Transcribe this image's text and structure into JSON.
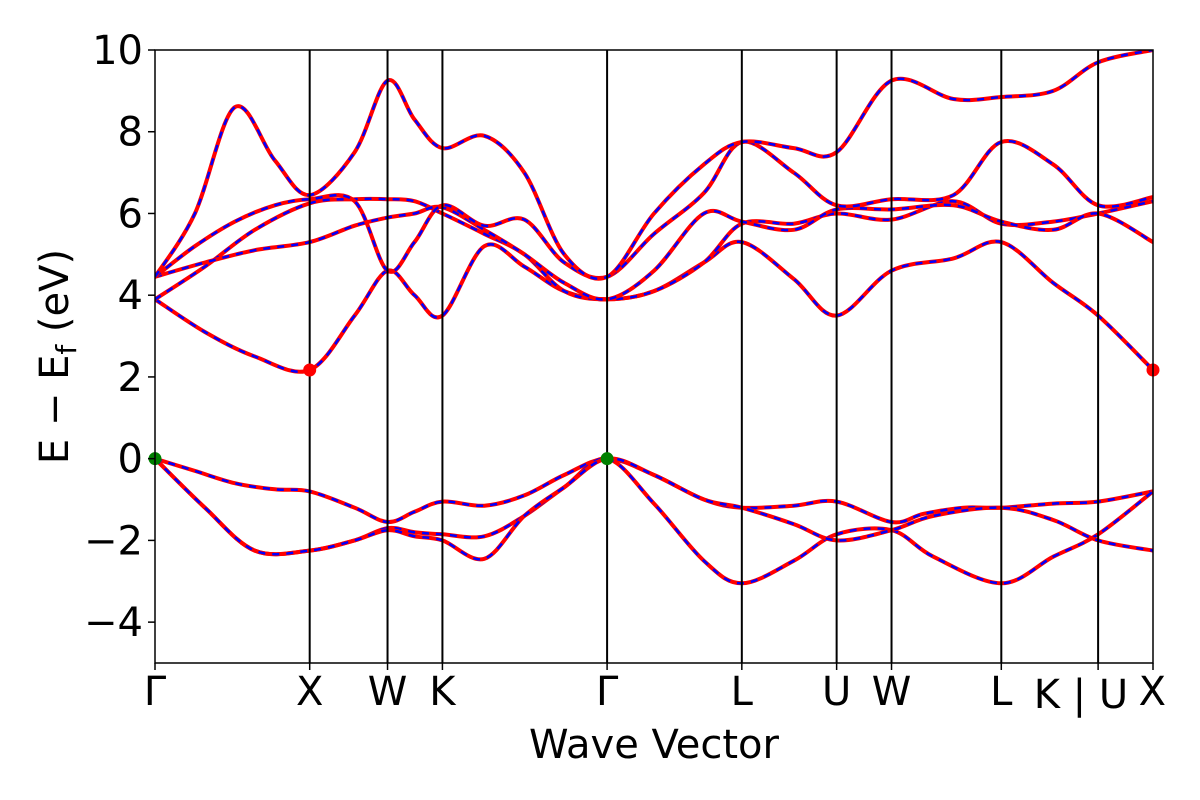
{
  "chart_data": {
    "type": "line",
    "title": "",
    "xlabel": "Wave Vector",
    "ylabel_main": "E − E",
    "ylabel_sub": "f",
    "ylabel_unit": " (eV)",
    "xlim": [
      0,
      1
    ],
    "ylim": [
      -5,
      10
    ],
    "yticks": [
      -4,
      -2,
      0,
      2,
      4,
      6,
      8,
      10
    ],
    "ytick_labels": [
      "−4",
      "−2",
      "0",
      "2",
      "4",
      "6",
      "8",
      "10"
    ],
    "kpoints": [
      {
        "label": "Γ",
        "x": 0.0
      },
      {
        "label": "X",
        "x": 0.155
      },
      {
        "label": "W",
        "x": 0.233
      },
      {
        "label": "K",
        "x": 0.288
      },
      {
        "label": "Γ",
        "x": 0.453
      },
      {
        "label": "L",
        "x": 0.588
      },
      {
        "label": "U",
        "x": 0.683
      },
      {
        "label": "W",
        "x": 0.738
      },
      {
        "label": "L",
        "x": 0.848
      },
      {
        "label": "K | U",
        "x": 0.945
      },
      {
        "label": "X",
        "x": 1.0
      }
    ],
    "line_colors": {
      "solid": "#ff0000",
      "dashed": "#0000ff"
    },
    "markers": [
      {
        "name": "vbm-marker-1",
        "x": 0.0,
        "y": 0.0,
        "color": "#008000"
      },
      {
        "name": "vbm-marker-2",
        "x": 0.453,
        "y": 0.0,
        "color": "#008000"
      },
      {
        "name": "cbm-marker-1",
        "x": 0.155,
        "y": 2.17,
        "color": "#ff0000"
      },
      {
        "name": "cbm-marker-2",
        "x": 1.0,
        "y": 2.17,
        "color": "#ff0000"
      }
    ],
    "bands": [
      {
        "name": "valence-band-1",
        "points": [
          [
            0,
            0
          ],
          [
            0.04,
            -0.3
          ],
          [
            0.08,
            -0.6
          ],
          [
            0.12,
            -0.75
          ],
          [
            0.155,
            -0.8
          ],
          [
            0.2,
            -1.2
          ],
          [
            0.233,
            -1.55
          ],
          [
            0.26,
            -1.3
          ],
          [
            0.288,
            -1.05
          ],
          [
            0.33,
            -1.15
          ],
          [
            0.37,
            -0.9
          ],
          [
            0.41,
            -0.4
          ],
          [
            0.453,
            0
          ],
          [
            0.5,
            -0.4
          ],
          [
            0.55,
            -1.0
          ],
          [
            0.588,
            -1.2
          ],
          [
            0.64,
            -1.15
          ],
          [
            0.683,
            -1.05
          ],
          [
            0.738,
            -1.55
          ],
          [
            0.77,
            -1.35
          ],
          [
            0.81,
            -1.2
          ],
          [
            0.848,
            -1.2
          ],
          [
            0.9,
            -1.1
          ],
          [
            0.945,
            -1.05
          ],
          [
            1.0,
            -0.8
          ]
        ]
      },
      {
        "name": "valence-band-2",
        "points": [
          [
            0,
            0
          ],
          [
            0.05,
            -1.2
          ],
          [
            0.1,
            -2.25
          ],
          [
            0.155,
            -2.25
          ],
          [
            0.2,
            -2.0
          ],
          [
            0.233,
            -1.7
          ],
          [
            0.26,
            -1.8
          ],
          [
            0.288,
            -1.85
          ],
          [
            0.33,
            -1.9
          ],
          [
            0.37,
            -1.4
          ],
          [
            0.41,
            -0.7
          ],
          [
            0.453,
            0
          ],
          [
            0.5,
            -1.1
          ],
          [
            0.55,
            -2.5
          ],
          [
            0.588,
            -3.05
          ],
          [
            0.64,
            -2.5
          ],
          [
            0.683,
            -1.85
          ],
          [
            0.738,
            -1.75
          ],
          [
            0.78,
            -2.4
          ],
          [
            0.848,
            -3.05
          ],
          [
            0.9,
            -2.4
          ],
          [
            0.945,
            -1.85
          ],
          [
            1.0,
            -0.8
          ]
        ]
      },
      {
        "name": "valence-band-3",
        "points": [
          [
            0,
            0
          ],
          [
            0.05,
            -1.2
          ],
          [
            0.1,
            -2.25
          ],
          [
            0.155,
            -2.25
          ],
          [
            0.2,
            -2.0
          ],
          [
            0.233,
            -1.75
          ],
          [
            0.26,
            -1.9
          ],
          [
            0.288,
            -2.0
          ],
          [
            0.33,
            -2.45
          ],
          [
            0.37,
            -1.4
          ],
          [
            0.41,
            -0.7
          ],
          [
            0.453,
            0
          ],
          [
            0.5,
            -0.4
          ],
          [
            0.55,
            -1.0
          ],
          [
            0.588,
            -1.2
          ],
          [
            0.64,
            -1.6
          ],
          [
            0.683,
            -2.0
          ],
          [
            0.738,
            -1.75
          ],
          [
            0.78,
            -1.4
          ],
          [
            0.848,
            -1.2
          ],
          [
            0.9,
            -1.5
          ],
          [
            0.945,
            -2.0
          ],
          [
            1.0,
            -2.25
          ]
        ]
      },
      {
        "name": "conduction-band-1",
        "points": [
          [
            0,
            3.9
          ],
          [
            0.05,
            3.1
          ],
          [
            0.1,
            2.5
          ],
          [
            0.155,
            2.17
          ],
          [
            0.2,
            3.5
          ],
          [
            0.233,
            4.6
          ],
          [
            0.26,
            4.0
          ],
          [
            0.288,
            3.5
          ],
          [
            0.33,
            5.2
          ],
          [
            0.37,
            4.7
          ],
          [
            0.41,
            4.1
          ],
          [
            0.453,
            3.9
          ],
          [
            0.5,
            4.1
          ],
          [
            0.55,
            4.8
          ],
          [
            0.588,
            5.3
          ],
          [
            0.64,
            4.4
          ],
          [
            0.683,
            3.5
          ],
          [
            0.738,
            4.6
          ],
          [
            0.8,
            4.9
          ],
          [
            0.848,
            5.3
          ],
          [
            0.9,
            4.3
          ],
          [
            0.945,
            3.5
          ],
          [
            1.0,
            2.17
          ]
        ]
      },
      {
        "name": "conduction-band-2",
        "points": [
          [
            0,
            3.9
          ],
          [
            0.05,
            4.7
          ],
          [
            0.1,
            5.6
          ],
          [
            0.155,
            6.25
          ],
          [
            0.2,
            6.35
          ],
          [
            0.233,
            6.35
          ],
          [
            0.26,
            6.3
          ],
          [
            0.288,
            6.0
          ],
          [
            0.33,
            5.5
          ],
          [
            0.37,
            5.0
          ],
          [
            0.41,
            4.1
          ],
          [
            0.453,
            3.9
          ],
          [
            0.5,
            4.1
          ],
          [
            0.55,
            4.8
          ],
          [
            0.588,
            5.75
          ],
          [
            0.64,
            5.75
          ],
          [
            0.683,
            6.0
          ],
          [
            0.738,
            5.85
          ],
          [
            0.8,
            6.3
          ],
          [
            0.848,
            5.75
          ],
          [
            0.9,
            5.8
          ],
          [
            0.945,
            6.0
          ],
          [
            1.0,
            6.3
          ]
        ]
      },
      {
        "name": "conduction-band-3",
        "points": [
          [
            0,
            4.45
          ],
          [
            0.05,
            4.8
          ],
          [
            0.1,
            5.1
          ],
          [
            0.155,
            5.3
          ],
          [
            0.2,
            5.7
          ],
          [
            0.233,
            5.9
          ],
          [
            0.26,
            6.0
          ],
          [
            0.288,
            6.15
          ],
          [
            0.33,
            5.6
          ],
          [
            0.37,
            5.0
          ],
          [
            0.41,
            4.3
          ],
          [
            0.453,
            3.9
          ],
          [
            0.5,
            4.6
          ],
          [
            0.55,
            6.0
          ],
          [
            0.588,
            5.8
          ],
          [
            0.64,
            5.6
          ],
          [
            0.683,
            6.1
          ],
          [
            0.738,
            6.1
          ],
          [
            0.8,
            6.2
          ],
          [
            0.848,
            5.8
          ],
          [
            0.9,
            5.6
          ],
          [
            0.945,
            6.0
          ],
          [
            1.0,
            5.3
          ]
        ]
      },
      {
        "name": "conduction-band-4",
        "points": [
          [
            0,
            4.45
          ],
          [
            0.04,
            5.2
          ],
          [
            0.08,
            5.8
          ],
          [
            0.12,
            6.2
          ],
          [
            0.155,
            6.35
          ],
          [
            0.2,
            6.3
          ],
          [
            0.233,
            4.6
          ],
          [
            0.26,
            5.3
          ],
          [
            0.288,
            6.2
          ],
          [
            0.33,
            5.7
          ],
          [
            0.37,
            5.85
          ],
          [
            0.41,
            4.8
          ],
          [
            0.453,
            4.45
          ],
          [
            0.5,
            5.5
          ],
          [
            0.55,
            6.5
          ],
          [
            0.588,
            7.75
          ],
          [
            0.64,
            7.0
          ],
          [
            0.683,
            6.2
          ],
          [
            0.738,
            6.35
          ],
          [
            0.8,
            6.45
          ],
          [
            0.848,
            7.75
          ],
          [
            0.9,
            7.2
          ],
          [
            0.945,
            6.2
          ],
          [
            1.0,
            6.4
          ]
        ]
      },
      {
        "name": "conduction-band-5",
        "points": [
          [
            0,
            4.45
          ],
          [
            0.04,
            6.0
          ],
          [
            0.08,
            8.6
          ],
          [
            0.12,
            7.3
          ],
          [
            0.155,
            6.45
          ],
          [
            0.2,
            7.5
          ],
          [
            0.233,
            9.25
          ],
          [
            0.26,
            8.3
          ],
          [
            0.288,
            7.6
          ],
          [
            0.33,
            7.9
          ],
          [
            0.37,
            7.0
          ],
          [
            0.41,
            5.0
          ],
          [
            0.453,
            4.45
          ],
          [
            0.5,
            6.0
          ],
          [
            0.55,
            7.2
          ],
          [
            0.588,
            7.75
          ],
          [
            0.64,
            7.6
          ],
          [
            0.683,
            7.5
          ],
          [
            0.738,
            9.25
          ],
          [
            0.8,
            8.8
          ],
          [
            0.848,
            8.85
          ],
          [
            0.9,
            9.0
          ],
          [
            0.945,
            9.7
          ],
          [
            1.0,
            10
          ]
        ]
      }
    ]
  }
}
